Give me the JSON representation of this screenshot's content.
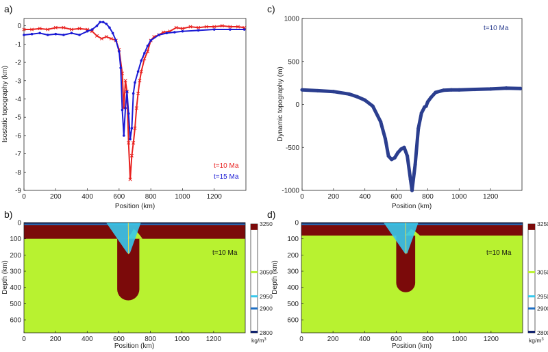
{
  "chart_data": [
    {
      "panel": "a)",
      "type": "line",
      "xlabel": "Position (km)",
      "ylabel": "Isostatic topography (km)",
      "xlim": [
        0,
        1400
      ],
      "ylim": [
        -9,
        0.4
      ],
      "xticks": [
        0,
        200,
        400,
        600,
        800,
        1000,
        1200
      ],
      "yticks": [
        0,
        -1,
        -2,
        -3,
        -4,
        -5,
        -6,
        -7,
        -8,
        -9
      ],
      "legend_position": "bottom-right",
      "series": [
        {
          "name": "t=10 Ma",
          "color": "#e8211f",
          "marker": "x",
          "x": [
            0,
            50,
            100,
            150,
            200,
            250,
            300,
            350,
            400,
            430,
            460,
            490,
            520,
            550,
            580,
            600,
            620,
            630,
            640,
            650,
            660,
            670,
            680,
            690,
            700,
            710,
            720,
            730,
            740,
            760,
            780,
            800,
            820,
            850,
            880,
            920,
            960,
            1000,
            1050,
            1100,
            1150,
            1200,
            1250,
            1300,
            1350,
            1390
          ],
          "y": [
            -0.2,
            -0.2,
            -0.15,
            -0.2,
            -0.1,
            -0.1,
            -0.2,
            -0.15,
            -0.2,
            -0.3,
            -0.55,
            -0.7,
            -0.6,
            -0.7,
            -0.8,
            -1.3,
            -2.6,
            -4.5,
            -3.0,
            -3.6,
            -6.4,
            -8.4,
            -7.1,
            -6.4,
            -5.6,
            -4.5,
            -3.7,
            -3.0,
            -2.5,
            -1.8,
            -1.4,
            -0.8,
            -0.6,
            -0.5,
            -0.35,
            -0.3,
            -0.1,
            -0.15,
            -0.05,
            -0.1,
            -0.05,
            -0.05,
            0.0,
            -0.05,
            -0.05,
            -0.1
          ]
        },
        {
          "name": "t=15 Ma",
          "color": "#1a1ad4",
          "marker": "dot",
          "x": [
            0,
            50,
            100,
            150,
            200,
            250,
            300,
            350,
            400,
            430,
            460,
            480,
            500,
            520,
            540,
            560,
            580,
            600,
            610,
            620,
            630,
            640,
            650,
            660,
            670,
            680,
            690,
            700,
            720,
            740,
            760,
            780,
            800,
            850,
            900,
            950,
            1000,
            1100,
            1200,
            1300,
            1390
          ],
          "y": [
            -0.5,
            -0.45,
            -0.4,
            -0.5,
            -0.45,
            -0.5,
            -0.4,
            -0.5,
            -0.3,
            -0.2,
            0.0,
            0.2,
            0.2,
            0.1,
            -0.1,
            -0.4,
            -0.8,
            -1.4,
            -2.3,
            -4.6,
            -6.0,
            -4.5,
            -3.6,
            -4.8,
            -6.2,
            -5.6,
            -3.7,
            -3.1,
            -2.5,
            -1.9,
            -1.5,
            -1.1,
            -0.8,
            -0.5,
            -0.4,
            -0.35,
            -0.3,
            -0.25,
            -0.2,
            -0.2,
            -0.2
          ]
        }
      ]
    },
    {
      "panel": "c)",
      "type": "scatter",
      "xlabel": "Position (km)",
      "ylabel": "Dynamic topography (m)",
      "xlim": [
        0,
        1400
      ],
      "ylim": [
        -1000,
        1000
      ],
      "xticks": [
        0,
        200,
        400,
        600,
        800,
        1000,
        1200
      ],
      "yticks": [
        1000,
        500,
        0,
        -500,
        -1000
      ],
      "annotation": "t=10 Ma",
      "series": [
        {
          "color": "#2b3e8f",
          "x": [
            0,
            100,
            200,
            300,
            350,
            400,
            450,
            500,
            530,
            550,
            570,
            590,
            610,
            630,
            650,
            670,
            690,
            700,
            720,
            740,
            760,
            780,
            790,
            800,
            820,
            850,
            900,
            950,
            1000,
            1100,
            1200,
            1300,
            1390
          ],
          "y": [
            170,
            160,
            150,
            120,
            90,
            50,
            -20,
            -200,
            -400,
            -600,
            -640,
            -620,
            -560,
            -520,
            -500,
            -600,
            -870,
            -1000,
            -700,
            -280,
            -100,
            -30,
            -20,
            30,
            80,
            140,
            165,
            170,
            170,
            175,
            180,
            190,
            185
          ]
        }
      ]
    },
    {
      "panel": "b)",
      "type": "heatmap",
      "xlabel": "Position (km)",
      "ylabel": "Depth (km)",
      "xlim": [
        0,
        1400
      ],
      "ylim": [
        0,
        680
      ],
      "xticks": [
        0,
        200,
        400,
        600,
        800,
        1000,
        1200
      ],
      "yticks": [
        0,
        100,
        200,
        300,
        400,
        500,
        600
      ],
      "annotation": "t=10 Ma",
      "colorbar": {
        "ticks": [
          3250,
          3050,
          2950,
          2900,
          2800
        ],
        "unit": "kg/m",
        "unit_sup": "3"
      },
      "lithosphere": {
        "base_left_km": 100,
        "base_right_km": 100,
        "slab_center_km": 660,
        "slab_bottom_depth_km": 480,
        "slab_half_width_km": 70
      }
    },
    {
      "panel": "d)",
      "type": "heatmap",
      "xlabel": "Position (km)",
      "ylabel": "Depth (km)",
      "xlim": [
        0,
        1400
      ],
      "ylim": [
        0,
        680
      ],
      "xticks": [
        0,
        200,
        400,
        600,
        800,
        1000,
        1200
      ],
      "yticks": [
        0,
        100,
        200,
        300,
        400,
        500,
        600
      ],
      "annotation": "t=10 Ma",
      "colorbar": {
        "ticks": [
          3250,
          3050,
          2950,
          2900,
          2800
        ],
        "unit": "kg/m",
        "unit_sup": "3"
      },
      "lithosphere": {
        "base_left_km": 80,
        "base_right_km": 80,
        "slab_center_km": 660,
        "slab_bottom_depth_km": 430,
        "slab_half_width_km": 60
      }
    }
  ],
  "colors": {
    "mantle": "#b8f230",
    "lithosphere": "#7b0a0a",
    "crust_dark": "#12236e",
    "crust_mid": "#1d6fc4",
    "crust_light": "#38c8ec",
    "colorbar_white": "#ffffff"
  }
}
